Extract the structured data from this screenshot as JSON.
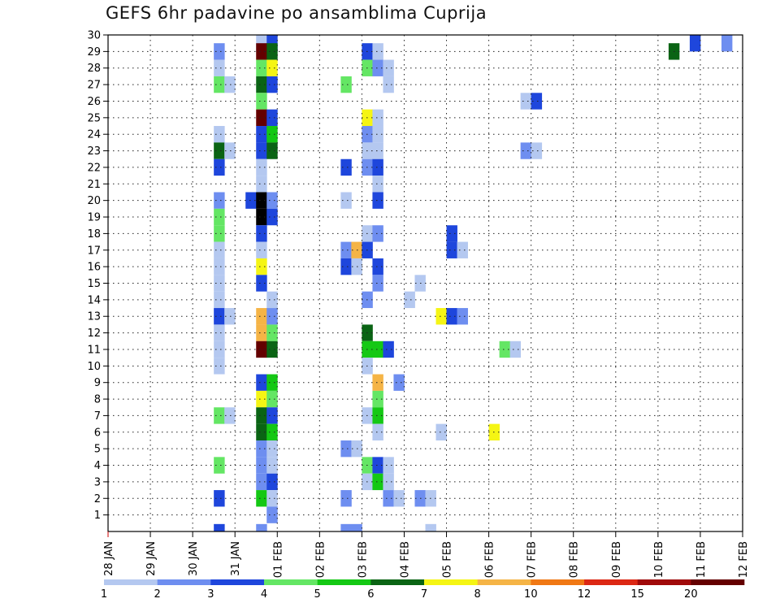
{
  "chart_data": {
    "type": "heatmap",
    "title": "GEFS 6hr padavine po ansamblima Cuprija",
    "xlabel": "",
    "ylabel": "",
    "x_tick_labels": [
      "28 JAN",
      "29 JAN",
      "30 JAN",
      "31 JAN",
      "01 FEB",
      "02 FEB",
      "03 FEB",
      "04 FEB",
      "05 FEB",
      "06 FEB",
      "07 FEB",
      "08 FEB",
      "09 FEB",
      "10 FEB",
      "11 FEB",
      "12 FEB"
    ],
    "x_range_days": [
      0,
      15
    ],
    "y_tick_labels": [
      "1",
      "2",
      "3",
      "4",
      "5",
      "6",
      "7",
      "8",
      "9",
      "10",
      "11",
      "12",
      "13",
      "14",
      "15",
      "16",
      "17",
      "18",
      "19",
      "20",
      "21",
      "22",
      "23",
      "24",
      "25",
      "26",
      "27",
      "28",
      "29",
      "30"
    ],
    "y_range": [
      0,
      30
    ],
    "grid": true,
    "legend_position": "bottom",
    "legend": {
      "labels": [
        "1",
        "2",
        "3",
        "4",
        "5",
        "6",
        "7",
        "8",
        "10",
        "12",
        "15",
        "20"
      ],
      "colors": [
        "#b4c8f0",
        "#6e8ef0",
        "#1e46dc",
        "#64e664",
        "#14c814",
        "#0a6414",
        "#f5f514",
        "#f5b446",
        "#f07814",
        "#dc2814",
        "#a00a0a",
        "#640000"
      ]
    },
    "colors": {
      "c1": "#b4c8f0",
      "c2": "#6e8ef0",
      "c3": "#1e46dc",
      "c4": "#64e664",
      "c5": "#14c814",
      "c6": "#0a6414",
      "c7": "#f5f514",
      "c8": "#f5b446",
      "c10": "#f07814",
      "c12": "#dc2814",
      "c15": "#a00a0a",
      "c20": "#640000"
    },
    "cells_encoding": "[member, start_step, run_length, level]; one step = 6 h from 28 JAN 00Z; level 1..12 = legend class",
    "cells": [
      [
        30,
        14,
        1,
        1
      ],
      [
        30,
        58,
        1,
        2
      ],
      [
        30,
        55,
        1,
        3
      ],
      [
        30,
        15,
        1,
        3
      ],
      [
        29,
        10,
        1,
        2
      ],
      [
        29,
        14,
        1,
        12
      ],
      [
        29,
        15,
        1,
        6
      ],
      [
        29,
        24,
        1,
        3
      ],
      [
        29,
        25,
        1,
        1
      ],
      [
        29,
        53,
        1,
        6
      ],
      [
        29,
        88,
        2,
        1
      ],
      [
        29,
        90,
        1,
        2
      ],
      [
        29,
        91,
        1,
        1
      ],
      [
        28,
        10,
        1,
        1
      ],
      [
        28,
        14,
        1,
        4
      ],
      [
        28,
        15,
        1,
        7
      ],
      [
        28,
        24,
        1,
        4
      ],
      [
        28,
        25,
        1,
        2
      ],
      [
        28,
        26,
        1,
        1
      ],
      [
        27,
        10,
        1,
        4
      ],
      [
        27,
        11,
        1,
        1
      ],
      [
        27,
        14,
        1,
        6
      ],
      [
        27,
        15,
        1,
        3
      ],
      [
        27,
        22,
        1,
        4
      ],
      [
        27,
        26,
        1,
        1
      ],
      [
        26,
        14,
        1,
        4
      ],
      [
        26,
        39,
        1,
        1
      ],
      [
        26,
        40,
        1,
        3
      ],
      [
        26,
        76,
        1,
        10
      ],
      [
        25,
        14,
        1,
        12
      ],
      [
        25,
        15,
        1,
        3
      ],
      [
        25,
        24,
        1,
        7
      ],
      [
        25,
        25,
        1,
        1
      ],
      [
        25,
        76,
        1,
        4
      ],
      [
        25,
        77,
        1,
        2
      ],
      [
        25,
        78,
        1,
        3
      ],
      [
        25,
        79,
        1,
        2
      ],
      [
        25,
        80,
        1,
        4
      ],
      [
        25,
        81,
        1,
        2
      ],
      [
        25,
        82,
        1,
        1
      ],
      [
        25,
        83,
        1,
        3
      ],
      [
        25,
        84,
        2,
        1
      ],
      [
        25,
        103,
        1,
        4
      ],
      [
        25,
        104,
        1,
        1
      ],
      [
        24,
        10,
        1,
        1
      ],
      [
        24,
        14,
        1,
        3
      ],
      [
        24,
        15,
        1,
        5
      ],
      [
        24,
        24,
        1,
        2
      ],
      [
        24,
        25,
        1,
        1
      ],
      [
        24,
        92,
        1,
        1
      ],
      [
        24,
        93,
        1,
        3
      ],
      [
        24,
        95,
        1,
        1
      ],
      [
        24,
        96,
        1,
        2
      ],
      [
        23,
        10,
        1,
        6
      ],
      [
        23,
        11,
        1,
        1
      ],
      [
        23,
        14,
        1,
        3
      ],
      [
        23,
        15,
        1,
        6
      ],
      [
        23,
        24,
        2,
        1
      ],
      [
        23,
        39,
        1,
        2
      ],
      [
        23,
        40,
        1,
        1
      ],
      [
        23,
        81,
        1,
        1
      ],
      [
        23,
        87,
        1,
        1
      ],
      [
        23,
        88,
        2,
        2
      ],
      [
        23,
        90,
        1,
        3
      ],
      [
        23,
        92,
        1,
        1
      ],
      [
        23,
        93,
        1,
        2
      ],
      [
        23,
        95,
        1,
        1
      ],
      [
        22,
        10,
        1,
        3
      ],
      [
        22,
        14,
        1,
        1
      ],
      [
        22,
        22,
        1,
        3
      ],
      [
        22,
        24,
        1,
        2
      ],
      [
        22,
        25,
        1,
        3
      ],
      [
        22,
        89,
        1,
        1
      ],
      [
        21,
        14,
        1,
        1
      ],
      [
        21,
        25,
        1,
        1
      ],
      [
        21,
        94,
        1,
        4
      ],
      [
        21,
        95,
        1,
        2
      ],
      [
        21,
        103,
        1,
        1
      ],
      [
        21,
        104,
        2,
        2
      ],
      [
        20,
        10,
        1,
        2
      ],
      [
        20,
        13,
        1,
        3
      ],
      [
        20,
        14,
        1,
        15
      ],
      [
        20,
        15,
        1,
        2
      ],
      [
        20,
        22,
        1,
        1
      ],
      [
        20,
        25,
        1,
        3
      ],
      [
        19,
        10,
        1,
        4
      ],
      [
        19,
        14,
        1,
        15
      ],
      [
        19,
        15,
        1,
        3
      ],
      [
        19,
        79,
        1,
        4
      ],
      [
        19,
        87,
        1,
        5
      ],
      [
        19,
        94,
        1,
        12
      ],
      [
        19,
        95,
        1,
        2
      ],
      [
        19,
        97,
        1,
        1
      ],
      [
        18,
        10,
        1,
        4
      ],
      [
        18,
        14,
        1,
        3
      ],
      [
        18,
        24,
        1,
        1
      ],
      [
        18,
        25,
        1,
        2
      ],
      [
        18,
        32,
        1,
        3
      ],
      [
        18,
        86,
        1,
        3
      ],
      [
        18,
        87,
        1,
        10
      ],
      [
        18,
        88,
        2,
        2
      ],
      [
        17,
        10,
        1,
        1
      ],
      [
        17,
        14,
        1,
        1
      ],
      [
        17,
        22,
        1,
        2
      ],
      [
        17,
        23,
        1,
        8
      ],
      [
        17,
        24,
        1,
        3
      ],
      [
        17,
        32,
        1,
        3
      ],
      [
        17,
        33,
        1,
        1
      ],
      [
        17,
        92,
        1,
        1
      ],
      [
        16,
        10,
        1,
        1
      ],
      [
        16,
        14,
        1,
        7
      ],
      [
        16,
        22,
        1,
        3
      ],
      [
        16,
        23,
        1,
        1
      ],
      [
        16,
        25,
        1,
        3
      ],
      [
        16,
        94,
        1,
        2
      ],
      [
        16,
        95,
        1,
        1
      ],
      [
        15,
        10,
        1,
        1
      ],
      [
        15,
        14,
        1,
        3
      ],
      [
        15,
        25,
        1,
        2
      ],
      [
        15,
        29,
        1,
        1
      ],
      [
        15,
        87,
        1,
        5
      ],
      [
        15,
        86,
        1,
        1
      ],
      [
        15,
        88,
        1,
        1
      ],
      [
        15,
        89,
        1,
        8
      ],
      [
        15,
        90,
        1,
        6
      ],
      [
        15,
        102,
        1,
        1
      ],
      [
        15,
        103,
        1,
        2
      ],
      [
        15,
        104,
        2,
        1
      ],
      [
        15,
        106,
        1,
        2
      ],
      [
        14,
        10,
        1,
        1
      ],
      [
        14,
        15,
        1,
        1
      ],
      [
        14,
        24,
        1,
        2
      ],
      [
        14,
        28,
        1,
        1
      ],
      [
        14,
        86,
        1,
        1
      ],
      [
        14,
        87,
        1,
        1
      ],
      [
        14,
        89,
        1,
        2
      ],
      [
        14,
        90,
        1,
        1
      ],
      [
        13,
        10,
        1,
        3
      ],
      [
        13,
        11,
        1,
        1
      ],
      [
        13,
        14,
        1,
        8
      ],
      [
        13,
        15,
        1,
        2
      ],
      [
        13,
        31,
        1,
        7
      ],
      [
        13,
        32,
        1,
        3
      ],
      [
        13,
        33,
        1,
        2
      ],
      [
        12,
        10,
        1,
        1
      ],
      [
        12,
        14,
        1,
        8
      ],
      [
        12,
        15,
        1,
        4
      ],
      [
        12,
        24,
        1,
        6
      ],
      [
        12,
        105,
        2,
        2
      ],
      [
        11,
        10,
        1,
        1
      ],
      [
        11,
        14,
        1,
        12
      ],
      [
        11,
        15,
        1,
        6
      ],
      [
        11,
        24,
        2,
        5
      ],
      [
        11,
        26,
        1,
        3
      ],
      [
        11,
        37,
        1,
        4
      ],
      [
        11,
        38,
        1,
        1
      ],
      [
        11,
        86,
        1,
        1
      ],
      [
        11,
        94,
        1,
        7
      ],
      [
        11,
        95,
        1,
        1
      ],
      [
        11,
        103,
        1,
        6
      ],
      [
        10,
        10,
        1,
        1
      ],
      [
        10,
        24,
        1,
        1
      ],
      [
        10,
        86,
        1,
        3
      ],
      [
        10,
        93,
        1,
        2
      ],
      [
        10,
        94,
        1,
        4
      ],
      [
        9,
        14,
        1,
        3
      ],
      [
        9,
        15,
        1,
        5
      ],
      [
        9,
        25,
        1,
        8
      ],
      [
        9,
        27,
        1,
        2
      ],
      [
        9,
        84,
        2,
        1
      ],
      [
        9,
        102,
        1,
        3
      ],
      [
        9,
        103,
        1,
        8
      ],
      [
        9,
        104,
        1,
        4
      ],
      [
        9,
        106,
        1,
        2
      ],
      [
        8,
        14,
        1,
        7
      ],
      [
        8,
        15,
        1,
        4
      ],
      [
        8,
        25,
        1,
        4
      ],
      [
        8,
        78,
        2,
        1
      ],
      [
        7,
        10,
        1,
        4
      ],
      [
        7,
        11,
        1,
        1
      ],
      [
        7,
        14,
        1,
        6
      ],
      [
        7,
        15,
        1,
        3
      ],
      [
        7,
        24,
        1,
        1
      ],
      [
        7,
        25,
        1,
        5
      ],
      [
        7,
        79,
        1,
        3
      ],
      [
        7,
        80,
        1,
        1
      ],
      [
        7,
        89,
        1,
        2
      ],
      [
        7,
        106,
        1,
        1
      ],
      [
        6,
        14,
        1,
        6
      ],
      [
        6,
        15,
        1,
        5
      ],
      [
        6,
        25,
        1,
        1
      ],
      [
        6,
        31,
        1,
        1
      ],
      [
        6,
        36,
        1,
        7
      ],
      [
        6,
        94,
        1,
        8
      ],
      [
        6,
        96,
        1,
        3
      ],
      [
        6,
        97,
        1,
        2
      ],
      [
        5,
        14,
        1,
        2
      ],
      [
        5,
        15,
        1,
        1
      ],
      [
        5,
        22,
        1,
        2
      ],
      [
        5,
        23,
        1,
        1
      ],
      [
        5,
        89,
        1,
        1
      ],
      [
        4,
        10,
        1,
        4
      ],
      [
        4,
        14,
        1,
        2
      ],
      [
        4,
        15,
        1,
        1
      ],
      [
        4,
        24,
        1,
        4
      ],
      [
        4,
        25,
        1,
        3
      ],
      [
        4,
        26,
        1,
        1
      ],
      [
        4,
        102,
        1,
        3
      ],
      [
        3,
        14,
        1,
        2
      ],
      [
        3,
        15,
        1,
        3
      ],
      [
        3,
        24,
        1,
        1
      ],
      [
        3,
        25,
        1,
        5
      ],
      [
        3,
        26,
        1,
        1
      ],
      [
        3,
        83,
        1,
        4
      ],
      [
        3,
        84,
        1,
        3
      ],
      [
        3,
        85,
        2,
        2
      ],
      [
        3,
        87,
        1,
        7
      ],
      [
        3,
        88,
        1,
        7
      ],
      [
        3,
        89,
        1,
        8
      ],
      [
        2,
        10,
        1,
        3
      ],
      [
        2,
        14,
        1,
        5
      ],
      [
        2,
        15,
        1,
        1
      ],
      [
        2,
        22,
        1,
        2
      ],
      [
        2,
        26,
        1,
        2
      ],
      [
        2,
        27,
        1,
        1
      ],
      [
        2,
        29,
        1,
        2
      ],
      [
        2,
        30,
        1,
        1
      ],
      [
        2,
        91,
        1,
        2
      ],
      [
        2,
        92,
        1,
        1
      ],
      [
        2,
        94,
        1,
        1
      ],
      [
        2,
        95,
        1,
        6
      ],
      [
        2,
        96,
        1,
        3
      ],
      [
        2,
        97,
        1,
        2
      ],
      [
        1,
        15,
        1,
        2
      ],
      [
        1,
        86,
        1,
        1
      ],
      [
        1,
        104,
        1,
        3
      ],
      [
        0,
        10,
        1,
        3
      ],
      [
        0,
        14,
        1,
        2
      ],
      [
        0,
        22,
        2,
        2
      ],
      [
        0,
        30,
        1,
        1
      ],
      [
        0,
        93,
        1,
        3
      ],
      [
        0,
        94,
        1,
        1
      ]
    ]
  }
}
